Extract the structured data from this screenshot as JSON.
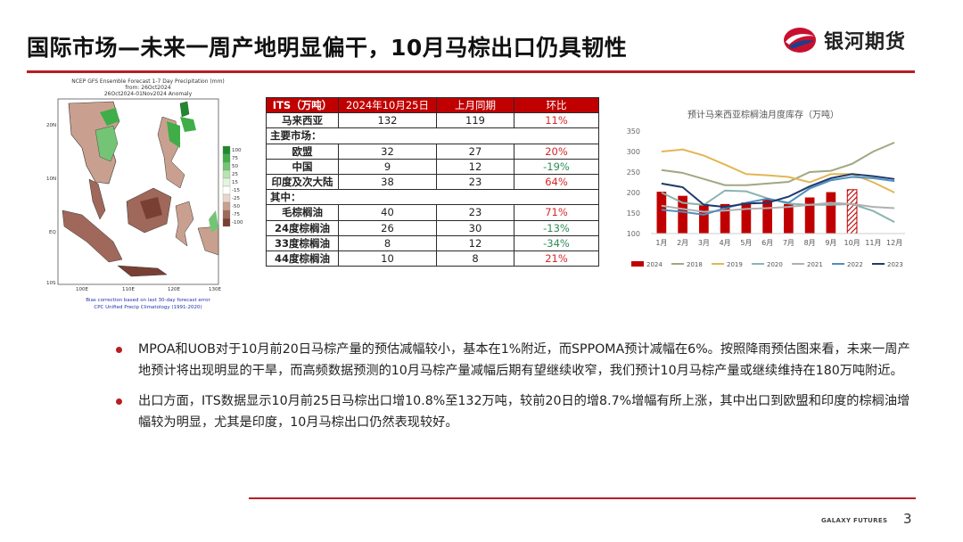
{
  "header": {
    "title": "国际市场—未来一周产地明显偏干，10月马棕出口仍具韧性",
    "logo_text": "银河期货",
    "accent_color": "#b61e25"
  },
  "map": {
    "title_line1": "NCEP GFS Ensemble Forecast 1-7 Day Precipitation (mm)",
    "title_line2": "from: 26Oct2024",
    "title_line3": "26Oct2024-01Nov2024 Anomaly",
    "footer_line1": "Bias correction based on last 30-day forecast error",
    "footer_line2": "CPC Unified Precip Climatology (1991-2020)",
    "lat_labels": [
      "20N",
      "10N",
      "EQ",
      "10S"
    ],
    "lon_labels": [
      "100E",
      "110E",
      "120E",
      "130E"
    ],
    "legend": [
      {
        "label": "100",
        "color": "#1f8a2d"
      },
      {
        "label": "75",
        "color": "#3fae48"
      },
      {
        "label": "50",
        "color": "#74c476"
      },
      {
        "label": "25",
        "color": "#b8e3b0"
      },
      {
        "label": "15",
        "color": "#e4f4de"
      },
      {
        "label": "-15",
        "color": "#ffffff"
      },
      {
        "label": "-25",
        "color": "#e9d6cb"
      },
      {
        "label": "-50",
        "color": "#c9a08f"
      },
      {
        "label": "-75",
        "color": "#a0685a"
      },
      {
        "label": "-100",
        "color": "#7a3f33"
      }
    ]
  },
  "its_table": {
    "headers": [
      "ITS（万吨）",
      "2024年10月25日",
      "上月同期",
      "环比"
    ],
    "rows": [
      {
        "type": "data",
        "label": "马来西亚",
        "cur": "132",
        "prev": "119",
        "chg": "11%",
        "sign": "pos"
      },
      {
        "type": "section",
        "label": "主要市场："
      },
      {
        "type": "data",
        "label": "欧盟",
        "cur": "32",
        "prev": "27",
        "chg": "20%",
        "sign": "pos"
      },
      {
        "type": "data",
        "label": "中国",
        "cur": "9",
        "prev": "12",
        "chg": "-19%",
        "sign": "neg"
      },
      {
        "type": "data",
        "label": "印度及次大陆",
        "cur": "38",
        "prev": "23",
        "chg": "64%",
        "sign": "pos"
      },
      {
        "type": "section",
        "label": "其中："
      },
      {
        "type": "data",
        "label": "毛棕榈油",
        "cur": "40",
        "prev": "23",
        "chg": "71%",
        "sign": "pos"
      },
      {
        "type": "data",
        "label": "24度棕榈油",
        "cur": "26",
        "prev": "30",
        "chg": "-13%",
        "sign": "neg"
      },
      {
        "type": "data",
        "label": "33度棕榈油",
        "cur": "8",
        "prev": "12",
        "chg": "-34%",
        "sign": "neg"
      },
      {
        "type": "data",
        "label": "44度棕榈油",
        "cur": "10",
        "prev": "8",
        "chg": "21%",
        "sign": "pos"
      }
    ]
  },
  "chart_data": {
    "type": "bar",
    "title": "预计马来西亚棕榈油月度库存（万吨）",
    "categories": [
      "1月",
      "2月",
      "3月",
      "4月",
      "5月",
      "6月",
      "7月",
      "8月",
      "9月",
      "10月",
      "11月",
      "12月"
    ],
    "ylim": [
      100,
      350
    ],
    "yticks": [
      100,
      150,
      200,
      250,
      300,
      350
    ],
    "grid": false,
    "legend_position": "bottom",
    "bars": {
      "name": "2024",
      "color": "#c00000",
      "values": [
        202,
        192,
        172,
        172,
        176,
        183,
        172,
        188,
        201,
        207,
        null,
        null
      ],
      "projected_index": 9
    },
    "series": [
      {
        "name": "2018",
        "color": "#a0a882",
        "values": [
          255,
          248,
          233,
          218,
          218,
          222,
          226,
          250,
          253,
          270,
          300,
          322
        ]
      },
      {
        "name": "2019",
        "color": "#e3b653",
        "values": [
          300,
          305,
          290,
          268,
          245,
          242,
          238,
          225,
          245,
          245,
          225,
          200
        ]
      },
      {
        "name": "2020",
        "color": "#8ab4b0",
        "values": [
          200,
          175,
          170,
          205,
          203,
          186,
          173,
          170,
          170,
          172,
          155,
          128
        ]
      },
      {
        "name": "2021",
        "color": "#b0b0b0",
        "values": [
          168,
          160,
          153,
          156,
          160,
          162,
          165,
          170,
          175,
          172,
          165,
          162
        ]
      },
      {
        "name": "2022",
        "color": "#4f8fc0",
        "values": [
          158,
          153,
          146,
          162,
          175,
          185,
          175,
          210,
          230,
          238,
          235,
          228
        ]
      },
      {
        "name": "2023",
        "color": "#1f3a6b",
        "values": [
          222,
          213,
          170,
          165,
          173,
          175,
          190,
          215,
          235,
          245,
          240,
          233
        ]
      }
    ]
  },
  "bullets": [
    "MPOA和UOB对于10月前20日马棕产量的预估减幅较小，基本在1%附近，而SPPOMA预计减幅在6%。按照降雨预估图来看，未来一周产地预计将出现明显的干旱，而高频数据预测的10月马棕产量减幅后期有望继续收窄，我们预计10月马棕产量或继续维持在180万吨附近。",
    "出口方面，ITS数据显示10月前25日马棕出口增10.8%至132万吨，较前20日的增8.7%增幅有所上涨，其中出口到欧盟和印度的棕榈油增幅较为明显，尤其是印度，10月马棕出口仍然表现较好。"
  ],
  "footer": {
    "brand": "GALAXY FUTURES",
    "page": "3"
  }
}
